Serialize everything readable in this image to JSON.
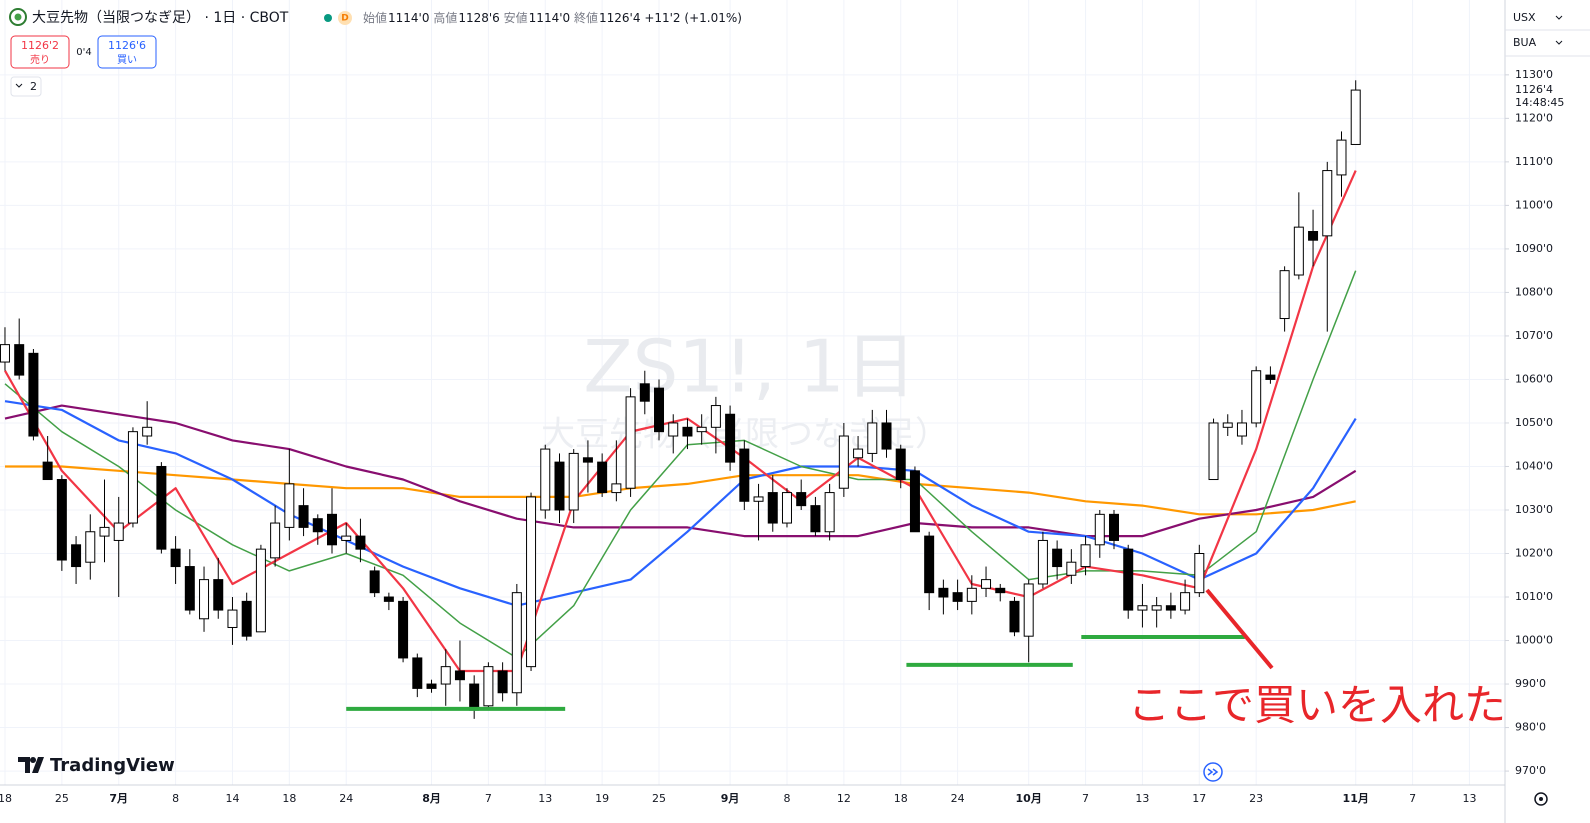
{
  "header": {
    "symbol": "大豆先物（当限つなぎ足）",
    "meta": "· 1日 · CBOT",
    "badge": "D",
    "ohlc": [
      {
        "label": "始値",
        "value": "1114'0"
      },
      {
        "label": "高値",
        "value": "1128'6"
      },
      {
        "label": "安値",
        "value": "1114'0"
      },
      {
        "label": "終値",
        "value": "1126'4"
      }
    ],
    "change": "+11'2 (+1.01%)"
  },
  "trade": {
    "sell_price": "1126'2",
    "sell_label": "売り",
    "spread": "0'4",
    "buy_price": "1126'6",
    "buy_label": "買い"
  },
  "indicators_count": "2",
  "currency": "USX",
  "price_source": "BUA",
  "brand": "TradingView",
  "chart_data": {
    "type": "candlestick",
    "watermark": {
      "title": "ZS1!, 1日",
      "subtitle": "大豆先物（当限つなぎ足）"
    },
    "xlim": [
      -0.35,
      105.5
    ],
    "xticks": [
      {
        "value": 0,
        "label": "18"
      },
      {
        "value": 4,
        "label": "25"
      },
      {
        "value": 8,
        "label": "7月"
      },
      {
        "value": 12,
        "label": "8"
      },
      {
        "value": 16,
        "label": "14"
      },
      {
        "value": 20,
        "label": "18"
      },
      {
        "value": 24,
        "label": "24"
      },
      {
        "value": 30,
        "label": "8月"
      },
      {
        "value": 34,
        "label": "7"
      },
      {
        "value": 38,
        "label": "13"
      },
      {
        "value": 42,
        "label": "19"
      },
      {
        "value": 46,
        "label": "25"
      },
      {
        "value": 51,
        "label": "9月"
      },
      {
        "value": 55,
        "label": "8"
      },
      {
        "value": 59,
        "label": "12"
      },
      {
        "value": 63,
        "label": "18"
      },
      {
        "value": 67,
        "label": "24"
      },
      {
        "value": 72,
        "label": "10月"
      },
      {
        "value": 76,
        "label": "7"
      },
      {
        "value": 80,
        "label": "13"
      },
      {
        "value": 84,
        "label": "17"
      },
      {
        "value": 88,
        "label": "23"
      },
      {
        "value": 95,
        "label": "11月"
      },
      {
        "value": 99,
        "label": "7"
      },
      {
        "value": 103,
        "label": "13"
      }
    ],
    "ylim": [
      966.8,
      1147.2
    ],
    "yticks": [
      {
        "value": 970,
        "label": "970'0"
      },
      {
        "value": 980,
        "label": "980'0"
      },
      {
        "value": 990,
        "label": "990'0"
      },
      {
        "value": 1000,
        "label": "1000'0"
      },
      {
        "value": 1010,
        "label": "1010'0"
      },
      {
        "value": 1020,
        "label": "1020'0"
      },
      {
        "value": 1030,
        "label": "1030'0"
      },
      {
        "value": 1040,
        "label": "1040'0"
      },
      {
        "value": 1050,
        "label": "1050'0"
      },
      {
        "value": 1060,
        "label": "1060'0"
      },
      {
        "value": 1070,
        "label": "1070'0"
      },
      {
        "value": 1080,
        "label": "1080'0"
      },
      {
        "value": 1090,
        "label": "1090'0"
      },
      {
        "value": 1100,
        "label": "1100'0"
      },
      {
        "value": 1110,
        "label": "1110'0"
      },
      {
        "value": 1120,
        "label": "1120'0"
      },
      {
        "value": 1130,
        "label": "1130'0"
      }
    ],
    "grid": true,
    "up_color": "#ffffff",
    "down_color": "#000000",
    "open": [
      1064,
      1068,
      1066,
      1041,
      1037,
      1022,
      1018,
      1024,
      1023,
      1027,
      1047,
      1040,
      1021,
      1017,
      1005,
      1014,
      1003,
      1009,
      1002,
      1019,
      1026,
      1031,
      1028,
      1029,
      1023,
      1024,
      1016,
      1010,
      1009,
      996,
      990,
      990,
      993,
      990,
      985,
      993,
      988,
      994,
      1030,
      1041,
      1030,
      1042,
      1041,
      1034,
      1035,
      1059,
      1058,
      1047,
      1049,
      1048,
      1049,
      1052,
      1044,
      1032,
      1034,
      1027,
      1034,
      1031,
      1025,
      1035,
      1042,
      1043,
      1050,
      1044,
      1039,
      1024,
      1012,
      1011,
      1009,
      1012,
      1012,
      1009,
      1001,
      1013,
      1021,
      1015,
      1017,
      1022,
      1029,
      1021,
      1007,
      1007,
      1008,
      1007,
      1011,
      1037,
      1049,
      1047,
      1050,
      1061,
      1074,
      1084,
      1094,
      1093,
      1107,
      1114
    ],
    "high": [
      1072,
      1074,
      1067,
      1047,
      1038,
      1024,
      1029,
      1037,
      1033,
      1049,
      1055,
      1041,
      1024,
      1021,
      1017,
      1019,
      1010,
      1011,
      1022,
      1031,
      1044,
      1035,
      1029,
      1035,
      1027,
      1028,
      1017,
      1011,
      1010,
      997,
      991,
      998,
      1000,
      992,
      995,
      995,
      1013,
      1034,
      1045,
      1043,
      1044,
      1046,
      1043,
      1046,
      1058,
      1062,
      1060,
      1052,
      1051,
      1052,
      1056,
      1054,
      1046,
      1036,
      1038,
      1035,
      1037,
      1033,
      1036,
      1050,
      1047,
      1053,
      1053,
      1045,
      1040,
      1025,
      1014,
      1014,
      1015,
      1017,
      1013,
      1010,
      1014,
      1025,
      1023,
      1021,
      1024,
      1030,
      1030,
      1022,
      1013,
      1010,
      1011,
      1014,
      1022,
      1051,
      1052,
      1053,
      1063,
      1063,
      1086,
      1103,
      1099,
      1110,
      1117,
      1128.75
    ],
    "low": [
      1062,
      1060,
      1046,
      1037,
      1016,
      1013,
      1014,
      1018,
      1010,
      1026,
      1045,
      1020,
      1013,
      1006,
      1002,
      1005,
      999,
      1000,
      1002,
      1017,
      1023,
      1024,
      1022,
      1020,
      1020,
      1018,
      1010,
      1007,
      995,
      987,
      988,
      985,
      986,
      982,
      984,
      986,
      985,
      993,
      1028,
      1027,
      1027,
      1034,
      1033,
      1032,
      1033,
      1052,
      1046,
      1043,
      1044,
      1045,
      1043,
      1039,
      1030,
      1023,
      1025,
      1026,
      1030,
      1024,
      1023,
      1033,
      1040,
      1041,
      1042,
      1035,
      1025,
      1007,
      1006,
      1007,
      1006,
      1010,
      1009,
      1001,
      995,
      1012,
      1014,
      1013,
      1015,
      1019,
      1021,
      1005,
      1003,
      1003,
      1005,
      1006,
      1010,
      1037,
      1047,
      1045,
      1049,
      1059,
      1071,
      1083,
      1086,
      1071,
      1102,
      1114
    ],
    "close": [
      1068,
      1061,
      1047,
      1037,
      1018.5,
      1017,
      1025,
      1026,
      1027,
      1048,
      1049,
      1021,
      1017,
      1007,
      1014,
      1007,
      1007,
      1001,
      1021,
      1027,
      1036,
      1026,
      1025,
      1022,
      1024,
      1021,
      1011,
      1009,
      996,
      989,
      989,
      994,
      991,
      984,
      994,
      988,
      1011,
      1033,
      1044,
      1030,
      1043,
      1041,
      1034,
      1036,
      1056,
      1055,
      1048,
      1050,
      1047,
      1049,
      1054,
      1041,
      1032,
      1033,
      1027,
      1034,
      1031,
      1025,
      1034,
      1047,
      1044,
      1050,
      1044,
      1037,
      1025,
      1011,
      1010,
      1009,
      1012,
      1014,
      1011,
      1002,
      1013,
      1023,
      1017,
      1018,
      1022,
      1029,
      1023,
      1007,
      1008,
      1008,
      1007,
      1011,
      1020,
      1050,
      1050,
      1050,
      1062,
      1060,
      1085,
      1095,
      1092,
      1108,
      1115,
      1126.5
    ],
    "ma_x": [
      0,
      4,
      8,
      12,
      16,
      20,
      24,
      28,
      32,
      36,
      40,
      44,
      48,
      52,
      56,
      60,
      64,
      68,
      72,
      76,
      80,
      84,
      88,
      92,
      95
    ],
    "moving_averages": [
      {
        "color": "#ff9800",
        "values": [
          1040,
          1040,
          1039,
          1038,
          1037,
          1036,
          1035,
          1035,
          1033,
          1033,
          1033,
          1035,
          1036,
          1038,
          1038,
          1038,
          1036,
          1035,
          1034,
          1032,
          1031,
          1029,
          1029,
          1030,
          1032
        ]
      },
      {
        "color": "#880e6f",
        "values": [
          1051,
          1054,
          1052,
          1050,
          1046,
          1044,
          1040,
          1037,
          1032,
          1028,
          1026,
          1026,
          1026,
          1024,
          1024,
          1024,
          1027,
          1026,
          1026,
          1024,
          1024,
          1028,
          1030,
          1033,
          1039
        ]
      },
      {
        "color": "#2962ff",
        "values": [
          1055,
          1053,
          1046,
          1043,
          1037,
          1029,
          1023,
          1017,
          1012,
          1008,
          1011,
          1014,
          1025,
          1037,
          1040,
          1040,
          1039,
          1031,
          1025,
          1024,
          1020,
          1014,
          1020,
          1035,
          1051
        ]
      },
      {
        "color": "#43a047",
        "values": [
          1059,
          1048,
          1040,
          1030,
          1022,
          1016,
          1020,
          1015,
          1004,
          996,
          1008,
          1030,
          1045,
          1046,
          1040,
          1037,
          1037,
          1025,
          1014,
          1016,
          1016,
          1015,
          1025,
          1060,
          1085
        ]
      },
      {
        "color": "#f23645",
        "values": [
          1062,
          1039,
          1025,
          1035,
          1013,
          1020,
          1027,
          1012,
          993,
          993,
          1032,
          1048,
          1051,
          1042,
          1032,
          1042,
          1035,
          1013,
          1010,
          1017,
          1015,
          1012,
          1044,
          1086,
          1108
        ]
      }
    ],
    "support_lines": [
      {
        "value": 984.3,
        "x": [
          24,
          39.4
        ]
      },
      {
        "value": 994.4,
        "x": [
          63.4,
          75.1
        ]
      },
      {
        "value": 1000.8,
        "x": [
          75.7,
          87.2
        ]
      }
    ],
    "support_color": "#2eaa3f",
    "annotation": "ここで買いを入れた",
    "annotation_color": "#e8262a",
    "last_price": {
      "value": 1126.5,
      "label": "1126'4"
    },
    "countdown": "14:48:45"
  }
}
